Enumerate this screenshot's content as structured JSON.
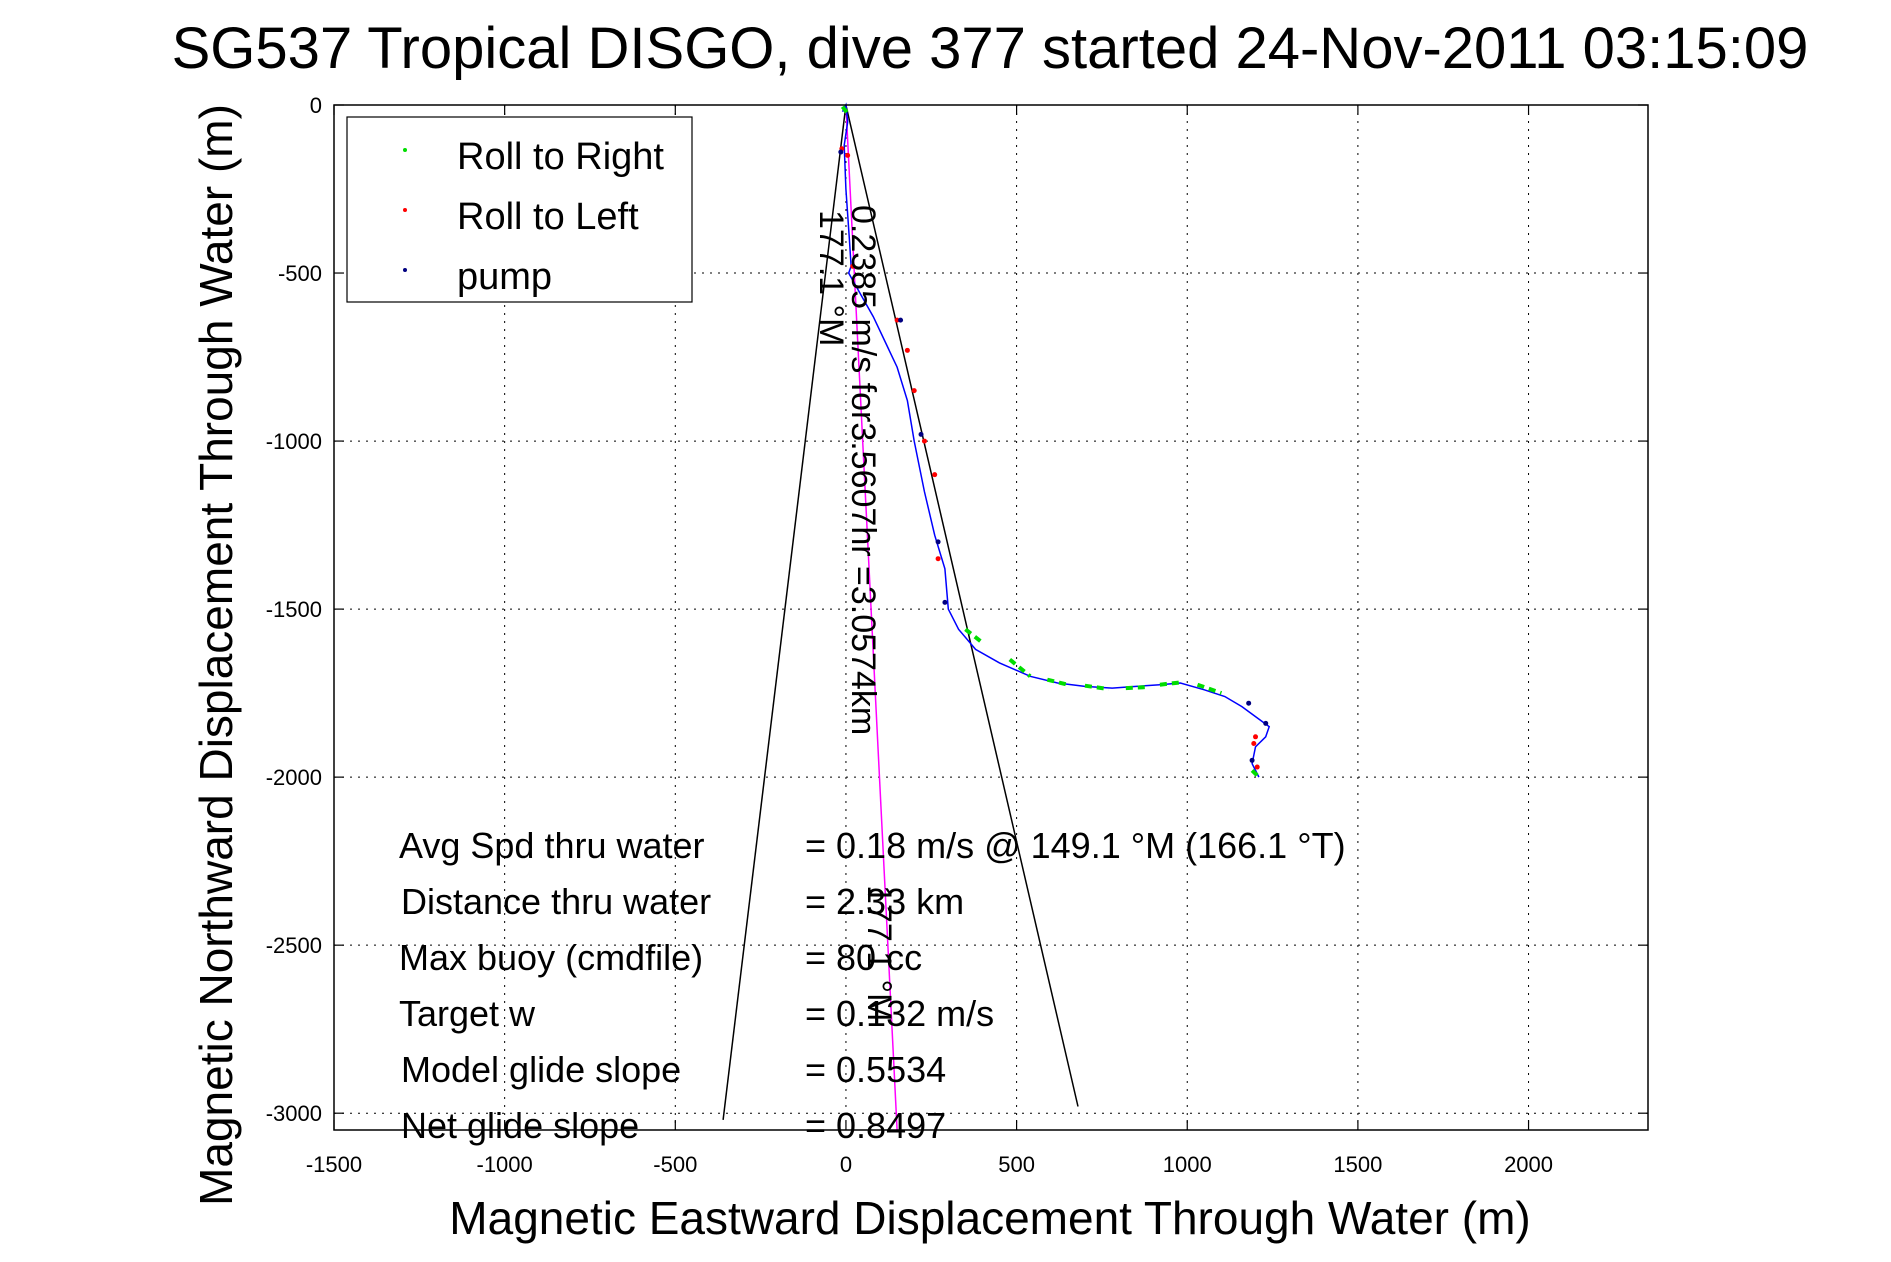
{
  "chart_data": {
    "type": "line",
    "title": "SG537 Tropical DISGO, dive 377 started 24-Nov-2011 03:15:09",
    "xlabel": "Magnetic Eastward Displacement Through Water (m)",
    "ylabel": "Magnetic Northward Displacement Through Water (m)",
    "xlim": [
      -1500,
      2350
    ],
    "ylim": [
      -3050,
      0
    ],
    "xticks": [
      "-1500",
      "-1000",
      "-500",
      "0",
      "500",
      "1000",
      "1500",
      "2000"
    ],
    "yticks": [
      "0",
      "-500",
      "-1000",
      "-1500",
      "-2000",
      "-2500",
      "-3000"
    ],
    "grid": true,
    "legend_position": "top-left",
    "legend": [
      "Roll to Right",
      "Roll to Left",
      "pump"
    ],
    "colors": {
      "track": "#0000ff",
      "roll_right": "#00dd00",
      "roll_left": "#ff0000",
      "pump": "#000080",
      "current": "#ff00ff",
      "cone": "#000000"
    },
    "track": {
      "x": [
        -10,
        0,
        5,
        -5,
        0,
        10,
        15,
        8,
        30,
        80,
        150,
        180,
        200,
        230,
        260,
        290,
        300,
        330,
        380,
        450,
        540,
        620,
        700,
        780,
        850,
        920,
        980,
        1050,
        1110,
        1160,
        1200,
        1240,
        1230,
        1200,
        1190,
        1200,
        1210
      ],
      "y": [
        -20,
        0,
        -50,
        -120,
        -250,
        -400,
        -480,
        -500,
        -540,
        -630,
        -780,
        -880,
        -1000,
        -1150,
        -1280,
        -1380,
        -1500,
        -1560,
        -1620,
        -1660,
        -1700,
        -1720,
        -1730,
        -1735,
        -1730,
        -1725,
        -1720,
        -1740,
        -1760,
        -1790,
        -1820,
        -1850,
        -1880,
        -1910,
        -1960,
        -1980,
        -2000
      ]
    },
    "roll_right_segments": [
      {
        "x": [
          -10,
          5
        ],
        "y": [
          -5,
          -25
        ]
      },
      {
        "x": [
          350,
          400
        ],
        "y": [
          -1560,
          -1600
        ]
      },
      {
        "x": [
          480,
          540
        ],
        "y": [
          -1650,
          -1700
        ]
      },
      {
        "x": [
          590,
          650
        ],
        "y": [
          -1710,
          -1725
        ]
      },
      {
        "x": [
          700,
          770
        ],
        "y": [
          -1728,
          -1738
        ]
      },
      {
        "x": [
          820,
          880
        ],
        "y": [
          -1735,
          -1732
        ]
      },
      {
        "x": [
          920,
          980
        ],
        "y": [
          -1725,
          -1718
        ]
      },
      {
        "x": [
          1030,
          1100
        ],
        "y": [
          -1725,
          -1750
        ]
      },
      {
        "x": [
          1190,
          1215
        ],
        "y": [
          -1980,
          -2005
        ]
      }
    ],
    "roll_left_points": {
      "x": [
        -12,
        5,
        20,
        150,
        180,
        200,
        230,
        260,
        270,
        1200,
        1195,
        1205
      ],
      "y": [
        -130,
        -150,
        -480,
        -640,
        -730,
        -850,
        -1000,
        -1100,
        -1350,
        -1880,
        -1900,
        -1970
      ]
    },
    "pump_points": {
      "x": [
        -15,
        160,
        220,
        270,
        290,
        1180,
        1230,
        1190
      ],
      "y": [
        -140,
        -640,
        -980,
        -1300,
        -1480,
        -1780,
        -1840,
        -1950
      ]
    },
    "current_line": {
      "x": [
        0,
        150
      ],
      "y": [
        0,
        -3050
      ]
    },
    "cone_lines": [
      {
        "x": [
          0,
          -360
        ],
        "y": [
          0,
          -3020
        ]
      },
      {
        "x": [
          0,
          680
        ],
        "y": [
          0,
          -2980
        ]
      }
    ],
    "annotations": {
      "heading_label": "177.1 °M",
      "current_label": "0.2385 m/s for3.5607hr =3.0574km",
      "current_heading_label": "177.1 °M",
      "stats": [
        {
          "label": "Avg Spd thru water",
          "value": "=  0.18 m/s @ 149.1 °M (166.1 °T)"
        },
        {
          "label": "Distance thru water",
          "value": "= 2.33 km"
        },
        {
          "label": "Max buoy (cmdfile)",
          "value": "= 80 cc"
        },
        {
          "label": "Target w",
          "value": "= 0.132 m/s"
        },
        {
          "label": "Model glide slope",
          "value": "= 0.5534"
        },
        {
          "label": "Net glide slope",
          "value": "= 0.8497"
        }
      ]
    }
  }
}
